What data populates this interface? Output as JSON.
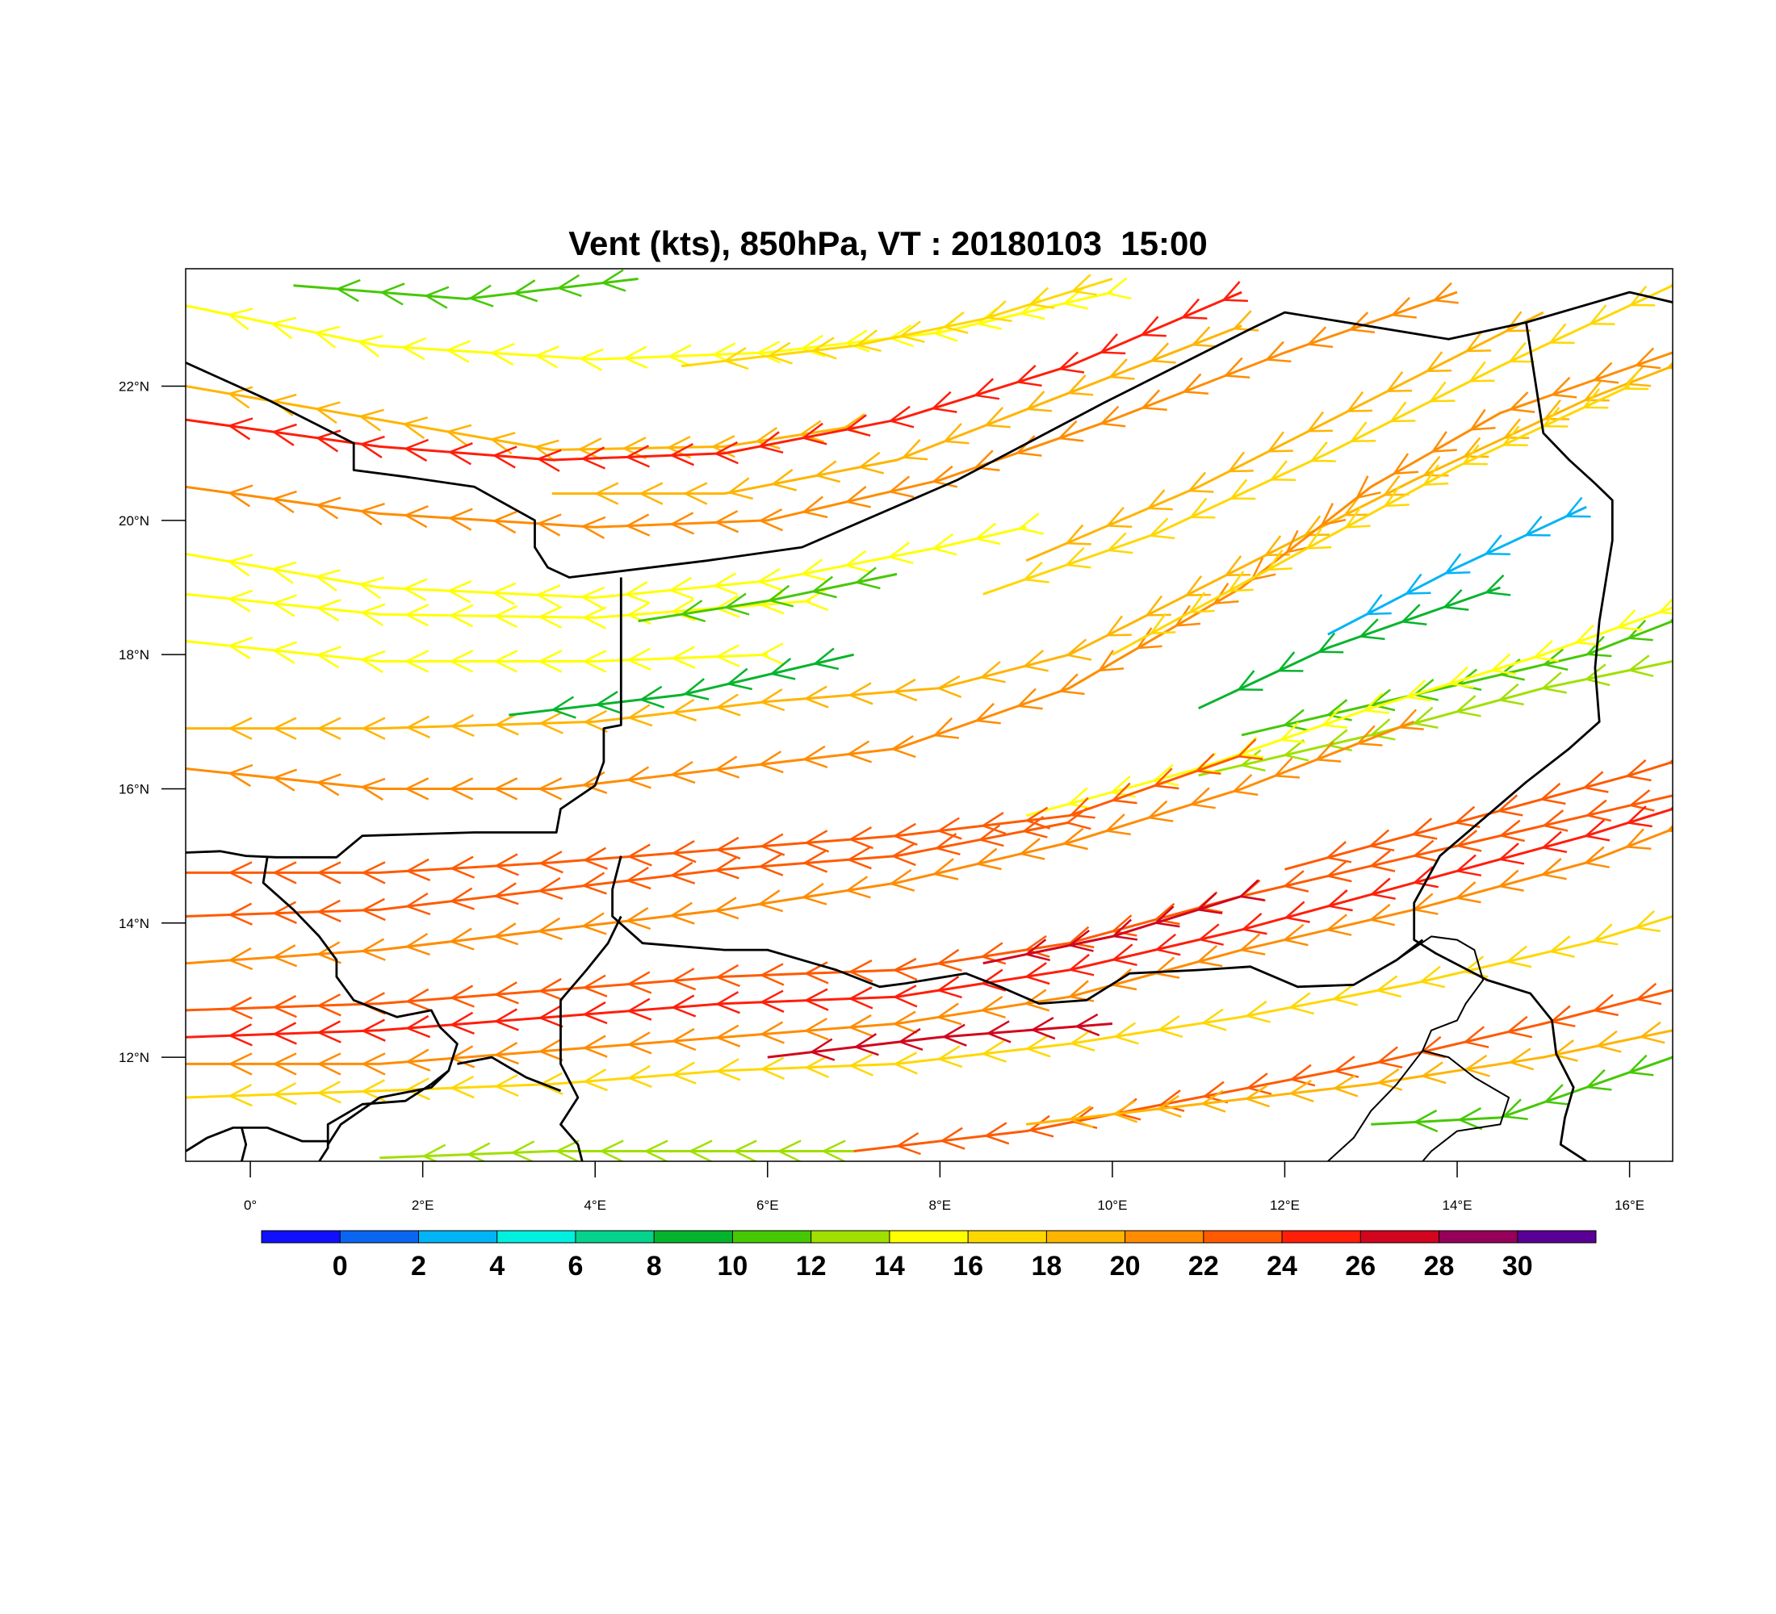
{
  "title": "Vent (kts), 850hPa, VT : 20180103  15:00",
  "map": {
    "lon_range": [
      -0.75,
      16.5
    ],
    "lat_range": [
      10.45,
      23.75
    ],
    "lat_ticks": [
      {
        "value": 22,
        "label": "22°N"
      },
      {
        "value": 20,
        "label": "20°N"
      },
      {
        "value": 18,
        "label": "18°N"
      },
      {
        "value": 16,
        "label": "16°N"
      },
      {
        "value": 14,
        "label": "14°N"
      },
      {
        "value": 12,
        "label": "12°N"
      }
    ],
    "lon_ticks": [
      {
        "value": 0,
        "label": "0°"
      },
      {
        "value": 2,
        "label": "2°E"
      },
      {
        "value": 4,
        "label": "4°E"
      },
      {
        "value": 6,
        "label": "6°E"
      },
      {
        "value": 8,
        "label": "8°E"
      },
      {
        "value": 10,
        "label": "10°E"
      },
      {
        "value": 12,
        "label": "12°E"
      },
      {
        "value": 14,
        "label": "14°E"
      },
      {
        "value": 16,
        "label": "16°E"
      }
    ],
    "borders": [
      [
        [
          -0.75,
          22.35
        ],
        [
          0.2,
          21.8
        ],
        [
          1.2,
          21.15
        ],
        [
          1.2,
          20.75
        ],
        [
          1.8,
          20.65
        ],
        [
          2.6,
          20.5
        ],
        [
          3.3,
          20.0
        ],
        [
          3.3,
          19.6
        ],
        [
          3.45,
          19.3
        ],
        [
          3.7,
          19.15
        ],
        [
          5.3,
          19.4
        ],
        [
          6.4,
          19.6
        ],
        [
          8.2,
          20.6
        ],
        [
          9.9,
          21.75
        ],
        [
          11.6,
          22.85
        ],
        [
          12.0,
          23.1
        ],
        [
          13.9,
          22.7
        ],
        [
          14.8,
          22.95
        ],
        [
          16.0,
          23.4
        ],
        [
          16.5,
          23.25
        ]
      ],
      [
        [
          14.8,
          22.95
        ],
        [
          15.0,
          21.3
        ],
        [
          15.3,
          20.9
        ],
        [
          15.6,
          20.55
        ],
        [
          15.8,
          20.3
        ],
        [
          15.8,
          19.7
        ],
        [
          15.75,
          19.3
        ],
        [
          15.65,
          18.5
        ],
        [
          15.6,
          17.8
        ],
        [
          15.65,
          17.0
        ],
        [
          15.3,
          16.6
        ],
        [
          14.8,
          16.1
        ],
        [
          14.3,
          15.55
        ],
        [
          13.8,
          15.0
        ],
        [
          13.5,
          14.3
        ],
        [
          13.5,
          13.75
        ],
        [
          13.75,
          13.55
        ],
        [
          14.35,
          13.15
        ],
        [
          14.85,
          12.95
        ],
        [
          15.1,
          12.55
        ],
        [
          15.15,
          12.05
        ],
        [
          15.35,
          11.55
        ],
        [
          15.25,
          11.1
        ],
        [
          15.2,
          10.7
        ],
        [
          15.5,
          10.45
        ]
      ],
      [
        [
          -0.75,
          15.05
        ],
        [
          -0.35,
          15.07
        ],
        [
          -0.05,
          15.0
        ],
        [
          0.3,
          14.98
        ],
        [
          1.0,
          14.98
        ],
        [
          1.3,
          15.3
        ],
        [
          2.6,
          15.35
        ],
        [
          3.55,
          15.35
        ],
        [
          3.6,
          15.7
        ],
        [
          4.0,
          16.05
        ],
        [
          4.1,
          16.4
        ],
        [
          4.1,
          16.9
        ],
        [
          4.3,
          16.95
        ],
        [
          4.3,
          19.15
        ]
      ],
      [
        [
          4.3,
          15.0
        ],
        [
          4.2,
          14.5
        ],
        [
          4.2,
          14.1
        ],
        [
          4.55,
          13.7
        ],
        [
          5.5,
          13.6
        ],
        [
          6.0,
          13.6
        ],
        [
          6.8,
          13.3
        ],
        [
          7.3,
          13.05
        ],
        [
          7.6,
          13.1
        ],
        [
          8.3,
          13.25
        ],
        [
          8.7,
          13.05
        ],
        [
          9.15,
          12.8
        ],
        [
          9.7,
          12.85
        ],
        [
          10.2,
          13.25
        ],
        [
          11.0,
          13.3
        ],
        [
          11.6,
          13.35
        ],
        [
          12.15,
          13.05
        ],
        [
          12.8,
          13.08
        ],
        [
          13.3,
          13.45
        ],
        [
          13.6,
          13.75
        ]
      ],
      [
        [
          0.2,
          15.0
        ],
        [
          0.15,
          14.6
        ],
        [
          0.5,
          14.2
        ],
        [
          0.8,
          13.8
        ],
        [
          1.0,
          13.45
        ],
        [
          1.0,
          13.2
        ],
        [
          1.2,
          12.85
        ],
        [
          1.7,
          12.6
        ],
        [
          2.1,
          12.7
        ],
        [
          2.2,
          12.45
        ],
        [
          2.4,
          12.2
        ],
        [
          2.3,
          11.8
        ],
        [
          2.1,
          11.6
        ],
        [
          1.8,
          11.35
        ],
        [
          1.3,
          11.3
        ],
        [
          0.9,
          11.0
        ],
        [
          0.9,
          10.65
        ],
        [
          0.8,
          10.45
        ]
      ],
      [
        [
          4.3,
          14.1
        ],
        [
          4.15,
          13.7
        ],
        [
          3.9,
          13.3
        ],
        [
          3.6,
          12.85
        ],
        [
          3.6,
          12.55
        ],
        [
          3.6,
          11.9
        ],
        [
          3.8,
          11.4
        ],
        [
          3.6,
          11.0
        ],
        [
          3.8,
          10.7
        ],
        [
          3.85,
          10.45
        ]
      ],
      [
        [
          2.4,
          11.9
        ],
        [
          2.8,
          12.0
        ],
        [
          3.2,
          11.7
        ],
        [
          3.6,
          11.5
        ]
      ],
      [
        [
          -0.75,
          10.6
        ],
        [
          -0.5,
          10.8
        ],
        [
          -0.2,
          10.95
        ],
        [
          0.2,
          10.95
        ],
        [
          0.6,
          10.75
        ],
        [
          0.9,
          10.75
        ]
      ],
      [
        [
          2.3,
          11.8
        ],
        [
          2.1,
          11.55
        ],
        [
          1.5,
          11.4
        ],
        [
          1.05,
          11.0
        ],
        [
          0.9,
          10.7
        ]
      ],
      [
        [
          -0.1,
          10.95
        ],
        [
          -0.05,
          10.7
        ],
        [
          -0.1,
          10.45
        ]
      ],
      [
        [
          13.3,
          13.45
        ],
        [
          13.7,
          13.8
        ],
        [
          14.0,
          13.75
        ],
        [
          14.2,
          13.6
        ],
        [
          14.3,
          13.15
        ],
        [
          14.1,
          12.8
        ],
        [
          14.0,
          12.55
        ],
        [
          13.7,
          12.4
        ],
        [
          13.6,
          12.1
        ],
        [
          13.9,
          12.0
        ],
        [
          14.2,
          11.7
        ],
        [
          14.6,
          11.4
        ],
        [
          14.5,
          11.0
        ],
        [
          14.0,
          10.9
        ],
        [
          13.7,
          10.6
        ],
        [
          13.6,
          10.45
        ]
      ],
      [
        [
          13.6,
          12.1
        ],
        [
          13.3,
          11.6
        ],
        [
          13.0,
          11.2
        ],
        [
          12.8,
          10.8
        ],
        [
          12.5,
          10.45
        ]
      ]
    ]
  },
  "colorbar": {
    "colors": [
      "#1010ff",
      "#0a66f0",
      "#00b4f5",
      "#00f0e0",
      "#05d28c",
      "#05b42d",
      "#46c805",
      "#a0e000",
      "#ffff00",
      "#ffd700",
      "#ffb400",
      "#ff8c00",
      "#ff5a00",
      "#ff1e0a",
      "#d2051e",
      "#96005a",
      "#5a0096"
    ],
    "labels": [
      "0",
      "2",
      "4",
      "6",
      "8",
      "10",
      "12",
      "14",
      "16",
      "18",
      "20",
      "22",
      "24",
      "26",
      "28",
      "30"
    ]
  }
}
